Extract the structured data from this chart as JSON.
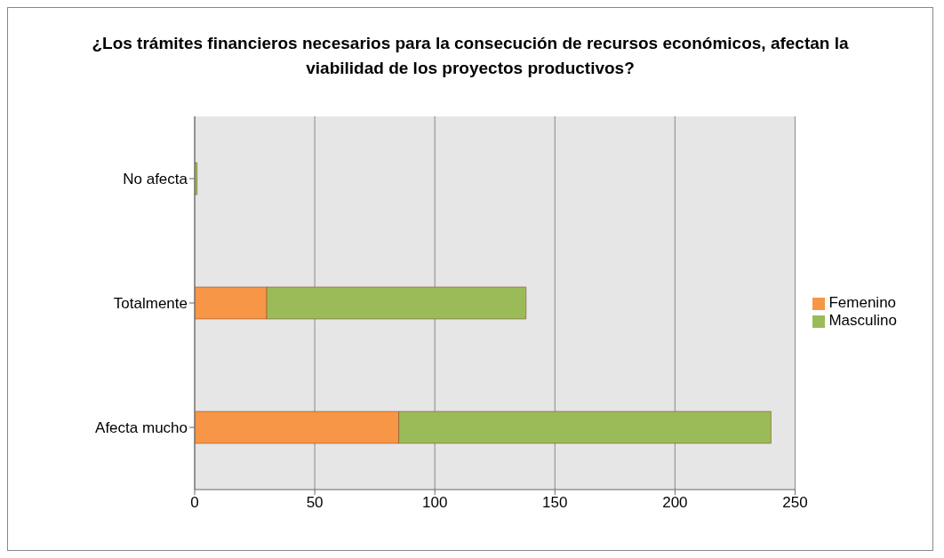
{
  "chart_data": {
    "type": "bar",
    "orientation": "horizontal",
    "stacked": true,
    "title": "¿Los trámites financieros necesarios para la consecución de recursos económicos, afectan la viabilidad de los proyectos productivos?",
    "categories": [
      "No afecta",
      "Totalmente",
      "Afecta mucho"
    ],
    "series": [
      {
        "name": "Femenino",
        "color": "#f79646",
        "values": [
          0,
          30,
          85
        ]
      },
      {
        "name": "Masculino",
        "color": "#9bbb59",
        "values": [
          1,
          108,
          155
        ]
      }
    ],
    "xlim": [
      0,
      250
    ],
    "xticks": [
      0,
      50,
      100,
      150,
      200,
      250
    ],
    "grid": "x",
    "legend": "right"
  }
}
